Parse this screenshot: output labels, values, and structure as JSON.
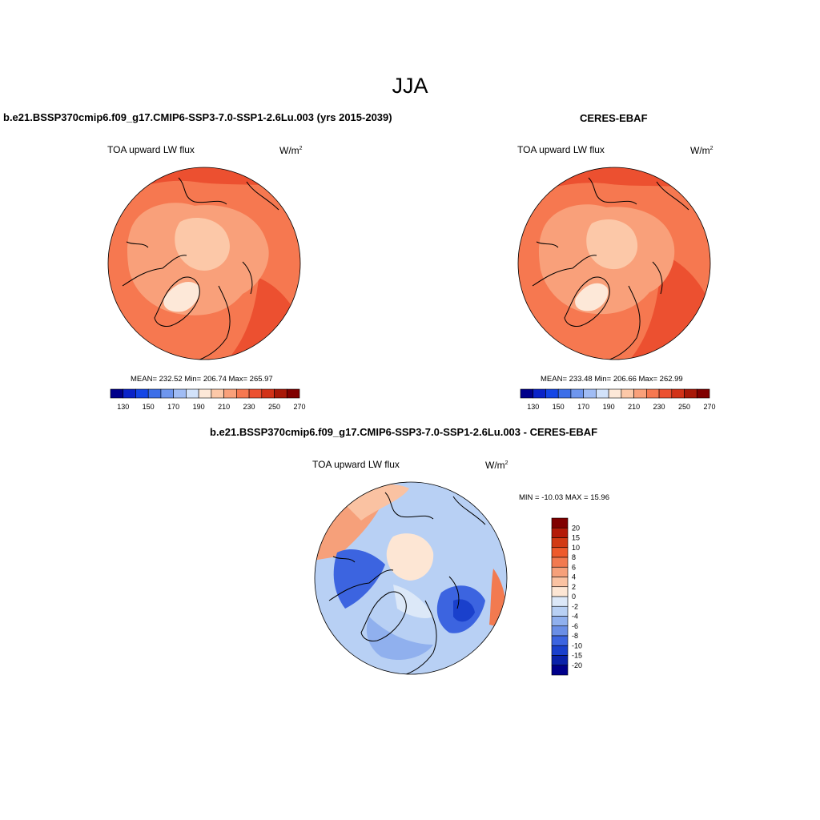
{
  "title": "JJA",
  "panels": [
    {
      "id": "model",
      "title": "b.e21.BSSP370cmip6.f09_g17.CMIP6-SSP3-7.0-SSP1-2.6Lu.003 (yrs 2015-2039)",
      "variable": "TOA upward LW flux",
      "units_base": "W/m",
      "units_sup": "2",
      "stats": "MEAN= 232.52  Min= 206.74  Max= 265.97"
    },
    {
      "id": "obs",
      "title": "CERES-EBAF",
      "variable": "TOA upward LW flux",
      "units_base": "W/m",
      "units_sup": "2",
      "stats": "MEAN= 233.48  Min= 206.66  Max= 262.99"
    },
    {
      "id": "diff",
      "title": "b.e21.BSSP370cmip6.f09_g17.CMIP6-SSP3-7.0-SSP1-2.6Lu.003 - CERES-EBAF",
      "variable": "TOA upward LW flux",
      "units_base": "W/m",
      "units_sup": "2",
      "stats": "MIN = -10.03 MAX =  15.96"
    }
  ],
  "colorbars": {
    "absolute": {
      "colors": [
        "#00008b",
        "#0a23c8",
        "#1446e6",
        "#3c6ee8",
        "#6e96ee",
        "#a0bcf4",
        "#d2e2fa",
        "#fde8d8",
        "#fcc8a8",
        "#f9a07a",
        "#f67850",
        "#ec5030",
        "#d23218",
        "#a81808",
        "#800000"
      ],
      "labels": [
        "130",
        "150",
        "170",
        "190",
        "210",
        "230",
        "250",
        "270"
      ]
    },
    "difference": {
      "colors": [
        "#800000",
        "#b41a08",
        "#d23a14",
        "#ee5a2c",
        "#f27a50",
        "#f6a07a",
        "#fac2a2",
        "#fde6d4",
        "#dce8f8",
        "#b8d0f4",
        "#90b0ee",
        "#6a8ee6",
        "#3c64e0",
        "#1a40cc",
        "#0a22aa",
        "#00008b"
      ],
      "labels": [
        "20",
        "15",
        "10",
        "8",
        "6",
        "4",
        "2",
        "0",
        "-2",
        "-4",
        "-6",
        "-8",
        "-10",
        "-15",
        "-20"
      ]
    }
  }
}
